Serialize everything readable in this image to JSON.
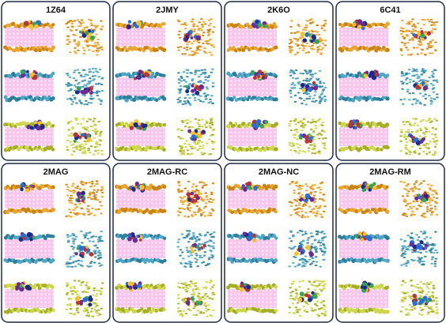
{
  "panels": [
    {
      "label": "1Z64"
    },
    {
      "label": "2JMY"
    },
    {
      "label": "2K6O"
    },
    {
      "label": "6C41"
    },
    {
      "label": "2MAG"
    },
    {
      "label": "2MAG-RC"
    },
    {
      "label": "2MAG-NC"
    },
    {
      "label": "2MAG-RM"
    }
  ]
}
